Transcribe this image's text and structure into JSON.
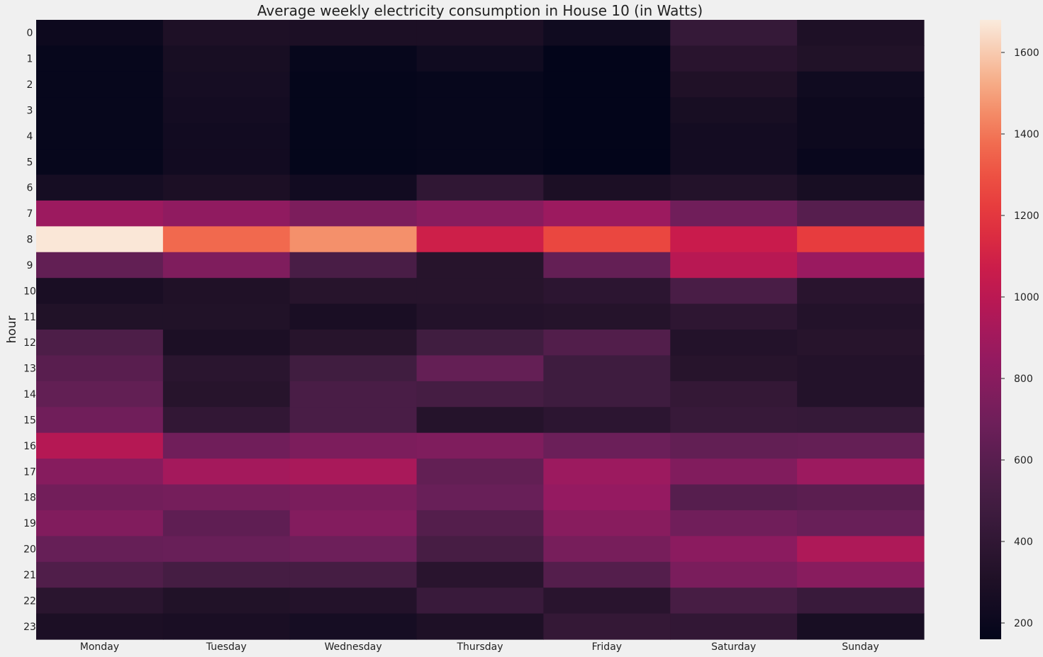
{
  "chart_data": {
    "type": "heatmap",
    "title": "Average weekly electricity consumption in House 10 (in Watts)",
    "xlabel": "",
    "ylabel": "hour",
    "x_categories": [
      "Monday",
      "Tuesday",
      "Wednesday",
      "Thursday",
      "Friday",
      "Saturday",
      "Sunday"
    ],
    "y_categories": [
      "0",
      "1",
      "2",
      "3",
      "4",
      "5",
      "6",
      "7",
      "8",
      "9",
      "10",
      "11",
      "12",
      "13",
      "14",
      "15",
      "16",
      "17",
      "18",
      "19",
      "20",
      "21",
      "22",
      "23"
    ],
    "values": [
      [
        210,
        300,
        290,
        290,
        230,
        430,
        300
      ],
      [
        180,
        270,
        180,
        230,
        160,
        360,
        320
      ],
      [
        180,
        260,
        170,
        180,
        160,
        310,
        230
      ],
      [
        180,
        250,
        170,
        180,
        160,
        270,
        210
      ],
      [
        180,
        240,
        170,
        180,
        160,
        250,
        210
      ],
      [
        180,
        240,
        170,
        180,
        160,
        250,
        190
      ],
      [
        260,
        290,
        240,
        400,
        290,
        330,
        270
      ],
      [
        880,
        830,
        750,
        800,
        880,
        700,
        590
      ],
      [
        1670,
        1370,
        1460,
        1080,
        1260,
        1060,
        1220
      ],
      [
        640,
        760,
        530,
        350,
        650,
        990,
        870
      ],
      [
        280,
        310,
        350,
        350,
        380,
        530,
        360
      ],
      [
        320,
        320,
        280,
        330,
        340,
        390,
        330
      ],
      [
        550,
        290,
        350,
        490,
        570,
        330,
        350
      ],
      [
        600,
        370,
        490,
        650,
        480,
        350,
        330
      ],
      [
        640,
        350,
        530,
        510,
        480,
        420,
        330
      ],
      [
        700,
        410,
        530,
        340,
        380,
        440,
        430
      ],
      [
        980,
        700,
        750,
        760,
        680,
        640,
        650
      ],
      [
        790,
        910,
        930,
        640,
        880,
        770,
        880
      ],
      [
        710,
        720,
        740,
        670,
        850,
        590,
        610
      ],
      [
        770,
        630,
        780,
        580,
        800,
        700,
        670
      ],
      [
        660,
        670,
        690,
        520,
        730,
        810,
        950
      ],
      [
        560,
        510,
        510,
        360,
        580,
        740,
        800
      ],
      [
        370,
        320,
        330,
        450,
        360,
        520,
        450
      ],
      [
        290,
        280,
        260,
        300,
        420,
        410,
        270
      ]
    ],
    "colorbar": {
      "min": 160,
      "max": 1680,
      "ticks": [
        200,
        400,
        600,
        800,
        1000,
        1200,
        1400,
        1600
      ]
    },
    "colormap": "rocket",
    "grid": false
  }
}
